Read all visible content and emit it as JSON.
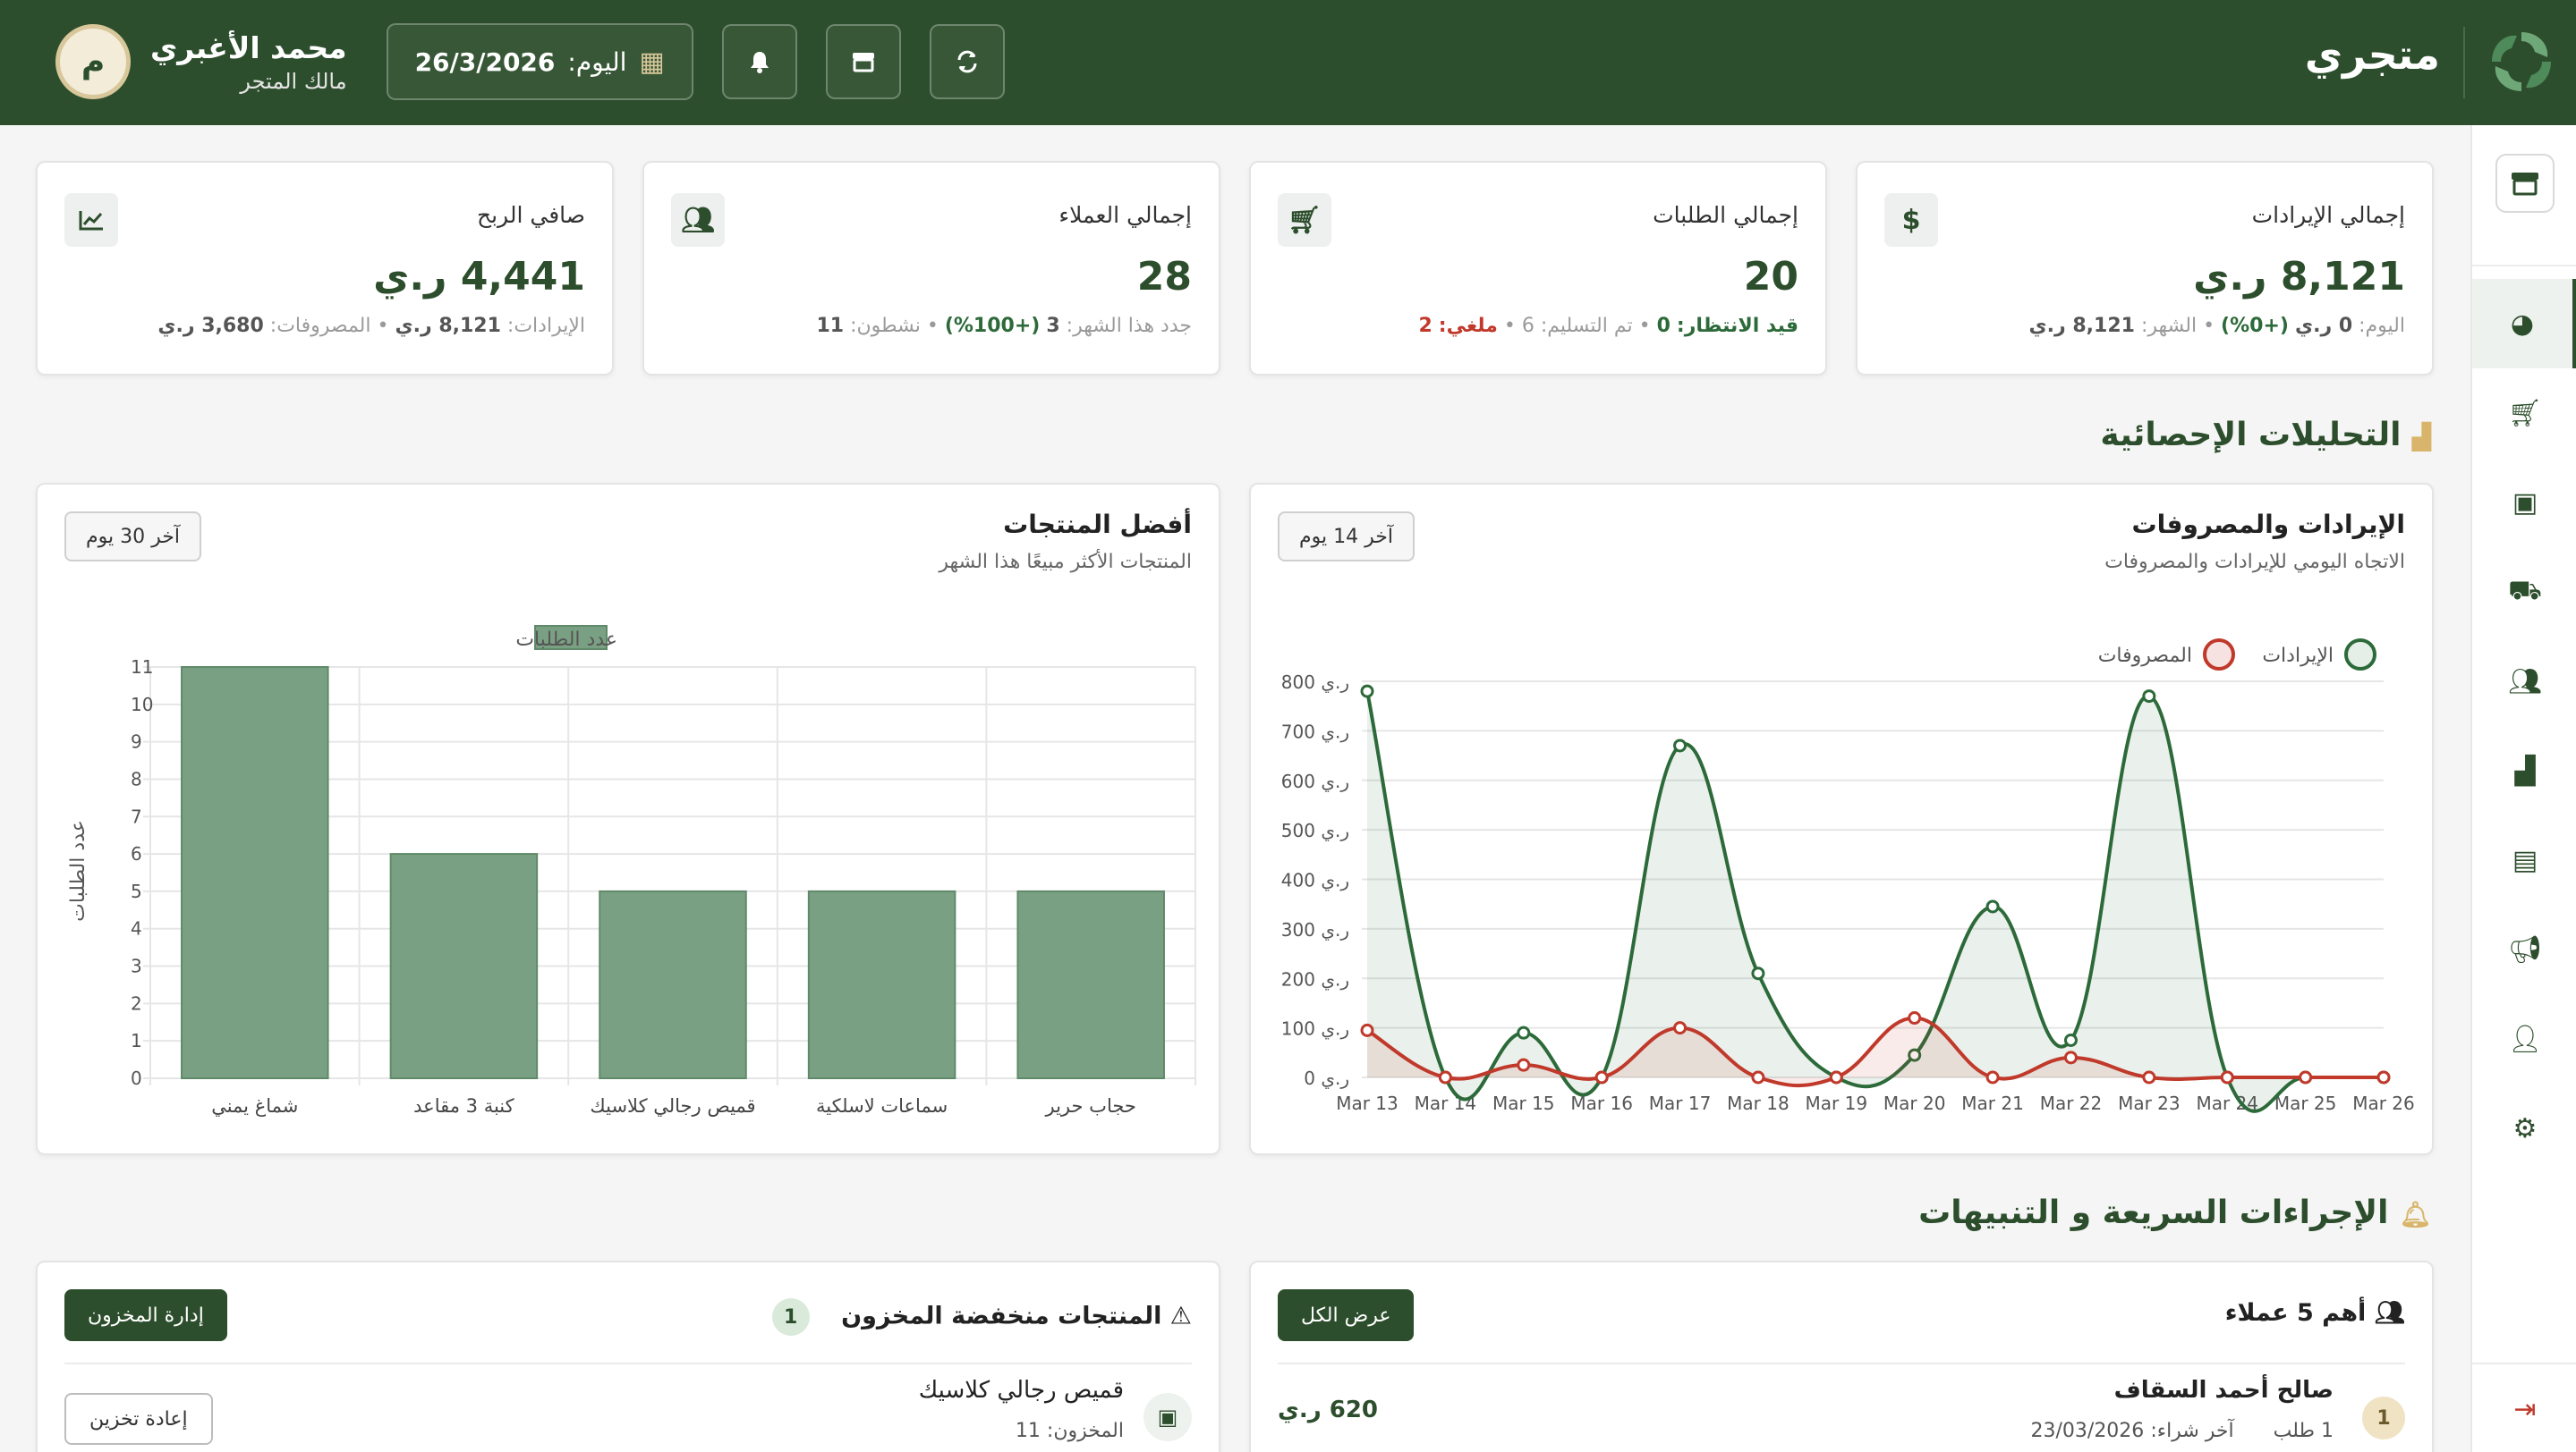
{
  "header": {
    "brand": "متجري",
    "user_name": "محمد الأغبري",
    "user_role": "مالك المتجر",
    "avatar_letter": "م",
    "date_label": "اليوم:",
    "date_value": "26/3/2026"
  },
  "kpis": [
    {
      "title": "إجمالي الإيرادات",
      "value": "8,121 ر.ي",
      "icon": "dollar-icon"
    },
    {
      "title": "إجمالي الطلبات",
      "value": "20",
      "icon": "cart-icon"
    },
    {
      "title": "إجمالي العملاء",
      "value": "28",
      "icon": "users-icon"
    },
    {
      "title": "صافي الربح",
      "value": "4,441 ر.ي",
      "icon": "chart-line-icon"
    }
  ],
  "kpi_subs": {
    "revenue": {
      "today_label": "اليوم:",
      "today_value": "0 ر.ي",
      "today_pct": "(+0%)",
      "month_label": "الشهر:",
      "month_value": "8,121 ر.ي"
    },
    "orders": {
      "pending_label": "قيد الانتظار:",
      "pending_value": "0",
      "delivered_label": "تم التسليم:",
      "delivered_value": "6",
      "cancelled_label": "ملغي:",
      "cancelled_value": "2"
    },
    "customers": {
      "new_label": "جدد هذا الشهر:",
      "new_value": "3",
      "new_pct": "(+100%)",
      "active_label": "نشطون:",
      "active_value": "11"
    },
    "profit": {
      "revenue_label": "الإيرادات:",
      "revenue_value": "8,121 ر.ي",
      "expenses_label": "المصروفات:",
      "expenses_value": "3,680 ر.ي"
    }
  },
  "analytics": {
    "title": "التحليلات الإحصائية"
  },
  "quick": {
    "title": "الإجراءات السريعة و التنبيهات"
  },
  "revenue_chart": {
    "title": "الإيرادات والمصروفات",
    "subtitle": "الاتجاه اليومي للإيرادات والمصروفات",
    "range": "آخر 14 يوم",
    "legend_revenue": "الإيرادات",
    "legend_expenses": "المصروفات"
  },
  "products_chart": {
    "title": "أفضل المنتجات",
    "subtitle": "المنتجات الأكثر مبيعًا هذا الشهر",
    "range": "آخر 30 يوم",
    "legend": "عدد الطلبات",
    "ylabel": "عدد الطلبات"
  },
  "chart_data": [
    {
      "type": "line",
      "title": "الإيرادات والمصروفات",
      "x": [
        "Mar 13",
        "Mar 14",
        "Mar 15",
        "Mar 16",
        "Mar 17",
        "Mar 18",
        "Mar 19",
        "Mar 20",
        "Mar 21",
        "Mar 22",
        "Mar 23",
        "Mar 24",
        "Mar 25",
        "Mar 26"
      ],
      "series": [
        {
          "name": "الإيرادات",
          "values": [
            780,
            0,
            90,
            0,
            670,
            210,
            0,
            45,
            345,
            75,
            770,
            0,
            0,
            0
          ]
        },
        {
          "name": "المصروفات",
          "values": [
            95,
            0,
            25,
            0,
            100,
            0,
            0,
            120,
            0,
            40,
            0,
            0,
            0,
            0
          ]
        }
      ],
      "yticks": [
        "0 ر.ي",
        "100 ر.ي",
        "200 ر.ي",
        "300 ر.ي",
        "400 ر.ي",
        "500 ر.ي",
        "600 ر.ي",
        "700 ر.ي",
        "800 ر.ي"
      ],
      "ylim": [
        0,
        800
      ],
      "colors": {
        "revenue": "#2d6a3a",
        "expenses": "#c0392b"
      },
      "legend": "top-right"
    },
    {
      "type": "bar",
      "title": "أفضل المنتجات",
      "categories": [
        "شماغ يمني",
        "كنبة 3 مقاعد",
        "قميص رجالي كلاسيك",
        "سماعات لاسلكية",
        "حجاب حرير"
      ],
      "series": [
        {
          "name": "عدد الطلبات",
          "values": [
            11,
            6,
            5,
            5,
            5
          ]
        }
      ],
      "ylabel": "عدد الطلبات",
      "ylim": [
        0,
        11
      ],
      "yticks": [
        "0",
        "1",
        "2",
        "3",
        "4",
        "5",
        "6",
        "7",
        "8",
        "9",
        "10",
        "11"
      ],
      "color": "#7aa083",
      "legend": "top"
    }
  ],
  "top_customers": {
    "title": "أهم 5 عملاء",
    "view_all": "عرض الكل",
    "items": [
      {
        "rank": "1",
        "name": "صالح أحمد السقاف",
        "orders": "1 طلب",
        "last_label": "آخر شراء:",
        "last_date": "23/03/2026",
        "amount": "620 ر.ي"
      }
    ]
  },
  "low_stock": {
    "title": "المنتجات منخفضة المخزون",
    "count": "1",
    "manage": "إدارة المخزون",
    "items": [
      {
        "name": "قميص رجالي كلاسيك",
        "stock_label": "المخزون:",
        "stock_value": "11",
        "restock": "إعادة تخزين"
      }
    ]
  }
}
